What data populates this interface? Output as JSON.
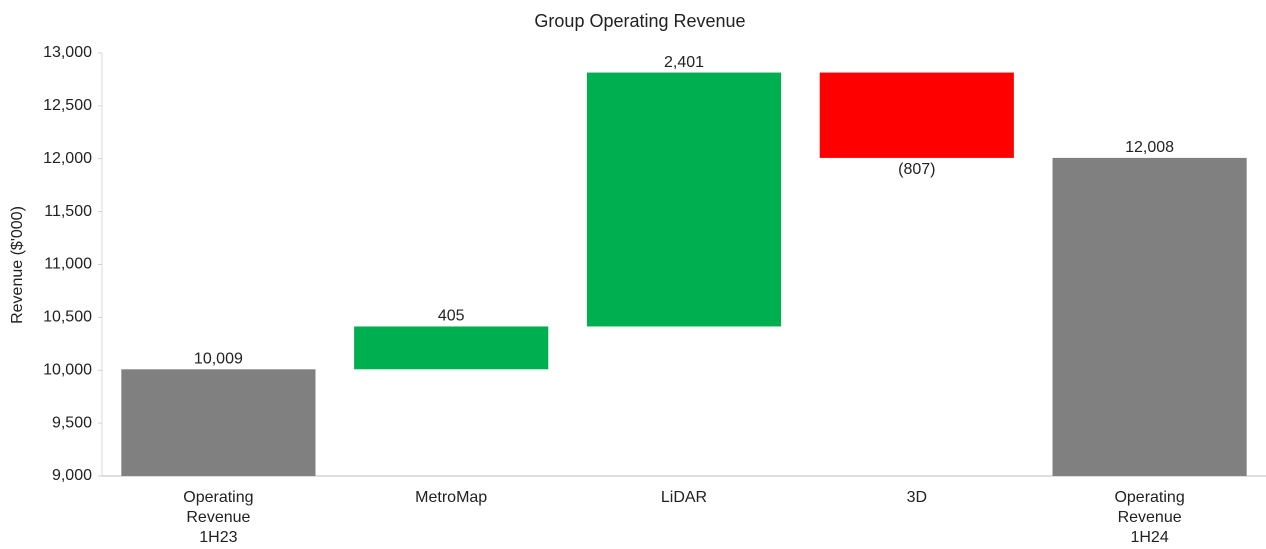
{
  "chart_data": {
    "type": "waterfall",
    "title": "Group Operating Revenue",
    "y_label": "Revenue ($'000)",
    "categories": [
      "Operating Revenue 1H23",
      "MetroMap",
      "LiDAR",
      "3D",
      "Operating Revenue 1H24"
    ],
    "values": [
      10009,
      405,
      2401,
      -807,
      12008
    ],
    "value_labels": [
      "10,009",
      "405",
      "2,401",
      "(807)",
      "12,008"
    ],
    "measure": [
      "absolute",
      "relative",
      "relative",
      "relative",
      "absolute"
    ],
    "colors": [
      "#7f807f",
      "#00b050",
      "#00b050",
      "#ff0000",
      "#7f807f"
    ],
    "ylim": [
      9000,
      13000
    ],
    "yticks": [
      {
        "value": 9000,
        "label": "9,000"
      },
      {
        "value": 9500,
        "label": "9,500"
      },
      {
        "value": 10000,
        "label": "10,000"
      },
      {
        "value": 10500,
        "label": "10,500"
      },
      {
        "value": 11000,
        "label": "11,000"
      },
      {
        "value": 11500,
        "label": "11,500"
      },
      {
        "value": 12000,
        "label": "12,000"
      },
      {
        "value": 12500,
        "label": "12,500"
      },
      {
        "value": 13000,
        "label": "13,000"
      }
    ],
    "grid": false
  }
}
